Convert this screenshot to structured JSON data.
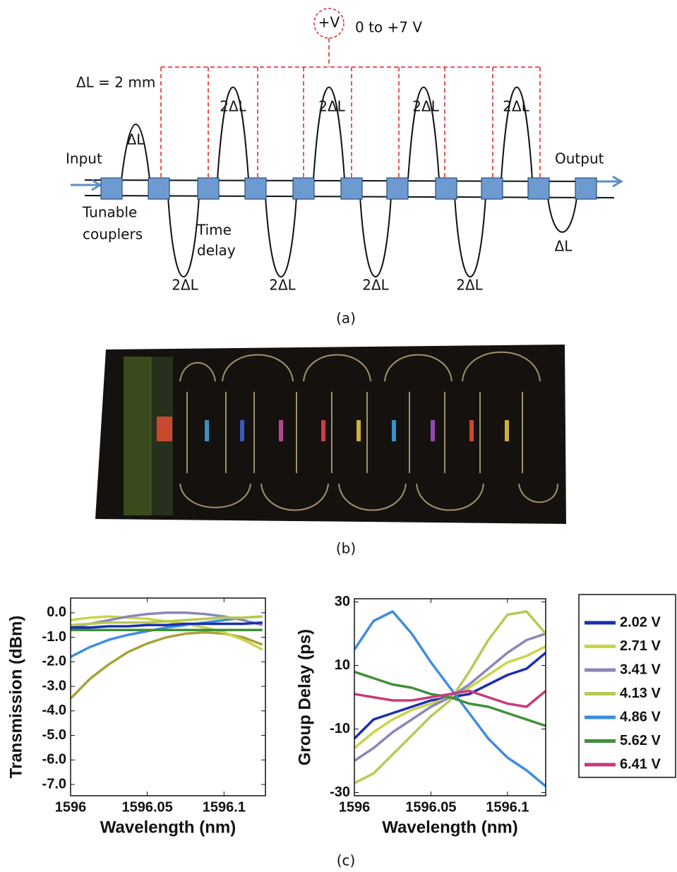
{
  "diagram": {
    "voltage_source": "+V",
    "voltage_range": "0 to +7 V",
    "delta_l": "ΔL = 2 mm",
    "input": "Input",
    "output": "Output",
    "loop_labels": [
      "ΔL",
      "2ΔL",
      "2ΔL",
      "2ΔL",
      "2ΔL",
      "2ΔL",
      "2ΔL",
      "2ΔL",
      "2ΔL",
      "ΔL"
    ],
    "coupler_label": [
      "Tunable",
      "couplers"
    ],
    "delay_label": [
      "Time",
      "delay"
    ]
  },
  "captions": [
    "(a)",
    "(b)",
    "(c)"
  ],
  "chart_data": [
    {
      "type": "line",
      "ylabel": "Transmission (dBm)",
      "xlabel": "Wavelength (nm)",
      "x": [
        1596,
        1596.0125,
        1596.025,
        1596.0375,
        1596.05,
        1596.0625,
        1596.075,
        1596.0875,
        1596.1,
        1596.1125,
        1596.125
      ],
      "xlim": [
        1596,
        1596.127
      ],
      "xticks": [
        1596,
        1596.05,
        1596.1
      ],
      "ylim": [
        -7.46,
        0.6
      ],
      "yticks": [
        {
          "value": 0,
          "label": "0.0"
        },
        {
          "value": -1,
          "label": "-1.0"
        },
        {
          "value": -2,
          "label": "-2.0"
        },
        {
          "value": -3,
          "label": "-3.0"
        },
        {
          "value": -4,
          "label": "-4.0"
        },
        {
          "value": -5,
          "label": "-5.0"
        },
        {
          "value": -6,
          "label": "-6.0"
        },
        {
          "value": -7,
          "label": "-7.0"
        }
      ],
      "series": [
        {
          "color": "#a8a23a",
          "values": [
            -3.5,
            -2.7,
            -2.1,
            -1.6,
            -1.25,
            -1.0,
            -0.85,
            -0.8,
            -0.85,
            -1.0,
            -1.3
          ]
        },
        {
          "color": "#3d8de0",
          "values": [
            -1.8,
            -1.4,
            -1.1,
            -0.9,
            -0.75,
            -0.6,
            -0.5,
            -0.4,
            -0.3,
            -0.2,
            -0.15
          ]
        },
        {
          "color": "#c8d44a",
          "values": [
            -0.3,
            -0.2,
            -0.15,
            -0.2,
            -0.25,
            -0.35,
            -0.45,
            -0.6,
            -0.8,
            -1.1,
            -1.5
          ]
        },
        {
          "color": "#8b86b8",
          "values": [
            -0.6,
            -0.45,
            -0.3,
            -0.15,
            -0.05,
            0,
            0,
            -0.05,
            -0.15,
            -0.3,
            -0.5
          ]
        },
        {
          "color": "#1a2fb0",
          "values": [
            -0.6,
            -0.6,
            -0.55,
            -0.55,
            -0.5,
            -0.5,
            -0.45,
            -0.45,
            -0.45,
            -0.45,
            -0.4
          ]
        },
        {
          "color": "#3f8f3a",
          "values": [
            -0.7,
            -0.7,
            -0.7,
            -0.7,
            -0.7,
            -0.7,
            -0.7,
            -0.7,
            -0.7,
            -0.7,
            -0.7
          ]
        },
        {
          "color": "#b7c955",
          "values": [
            -0.5,
            -0.45,
            -0.4,
            -0.4,
            -0.4,
            -0.35,
            -0.3,
            -0.25,
            -0.2,
            -0.2,
            -0.15
          ]
        }
      ]
    },
    {
      "type": "line",
      "ylabel": "Group Delay (ps)",
      "xlabel": "Wavelength (nm)",
      "legend": "right",
      "x": [
        1596,
        1596.0125,
        1596.025,
        1596.0375,
        1596.05,
        1596.0625,
        1596.075,
        1596.0875,
        1596.1,
        1596.1125,
        1596.125
      ],
      "xlim": [
        1596,
        1596.125
      ],
      "xticks": [
        1596,
        1596.05,
        1596.1
      ],
      "ylim": [
        -31,
        31
      ],
      "yticks": [
        30,
        10,
        -10,
        -30
      ],
      "series": [
        {
          "name": "2.02 V",
          "color": "#1a2fb0",
          "values": [
            -13,
            -7,
            -5,
            -3,
            -1,
            0,
            1,
            4,
            7,
            9,
            14
          ]
        },
        {
          "name": "2.71 V",
          "color": "#c8d44a",
          "values": [
            -16,
            -11,
            -7,
            -4,
            -2,
            0,
            3,
            7,
            11,
            13,
            16
          ]
        },
        {
          "name": "3.41 V",
          "color": "#8b86b8",
          "values": [
            -20,
            -16,
            -11,
            -7,
            -3,
            0,
            4,
            9,
            14,
            18,
            20
          ]
        },
        {
          "name": "4.13 V",
          "color": "#b7c955",
          "values": [
            -27,
            -24,
            -18,
            -12,
            -6,
            -1,
            8,
            18,
            26,
            27,
            20
          ]
        },
        {
          "name": "4.86 V",
          "color": "#3d8de0",
          "values": [
            15,
            24,
            27,
            20,
            11,
            3,
            -5,
            -13,
            -19,
            -23,
            -28
          ]
        },
        {
          "name": "5.62 V",
          "color": "#3f8f3a",
          "values": [
            8,
            6,
            4,
            3,
            1,
            0,
            -2,
            -3,
            -5,
            -7,
            -9
          ]
        },
        {
          "name": "6.41 V",
          "color": "#c83a7a",
          "values": [
            1,
            0,
            -1,
            -1,
            0,
            1,
            2,
            0,
            -2,
            -3,
            2
          ]
        }
      ]
    }
  ]
}
